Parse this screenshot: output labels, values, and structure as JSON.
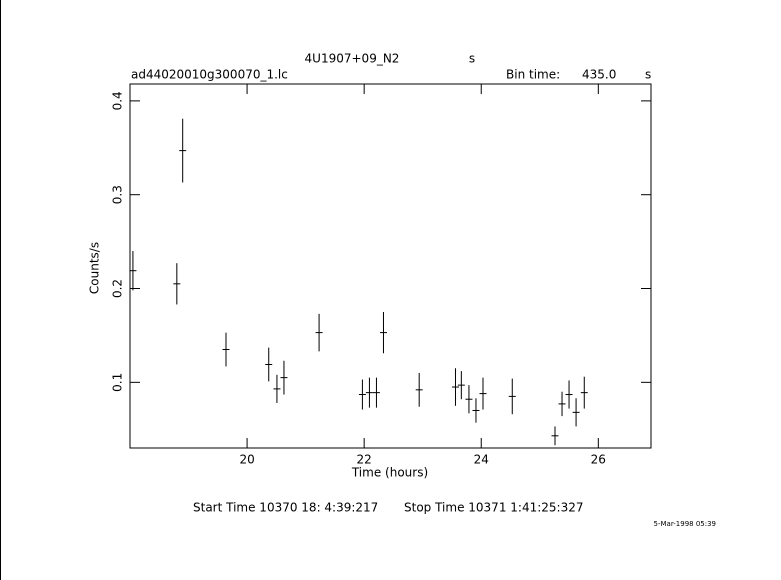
{
  "chart_data": {
    "type": "errorbar",
    "title": "4U1907+09_N2",
    "title_unit": "s",
    "file": "ad44020010g300070_1.lc",
    "bin_time_label": "Bin time:",
    "bin_time": "435.0",
    "bin_time_unit": "s",
    "xlabel": "Time (hours)",
    "ylabel": "Counts/s",
    "start_time": "Start Time 10370 18: 4:39:217",
    "stop_time": "Stop Time 10371  1:41:25:327",
    "date": "5-Mar-1998 05:39",
    "xlim": [
      18.0,
      26.9
    ],
    "ylim": [
      0.03,
      0.418
    ],
    "xticks": [
      20,
      22,
      24,
      26
    ],
    "yticks": [
      0.1,
      0.2,
      0.3,
      0.4
    ],
    "series": [
      {
        "color": "#000000",
        "x": [
          18.05,
          18.8,
          18.9,
          19.64,
          20.37,
          20.51,
          20.63,
          21.23,
          21.97,
          22.09,
          22.21,
          22.33,
          22.94,
          23.56,
          23.66,
          23.79,
          23.91,
          24.03,
          24.53,
          25.26,
          25.38,
          25.5,
          25.62,
          25.76
        ],
        "values": [
          0.219,
          0.205,
          0.347,
          0.135,
          0.119,
          0.093,
          0.105,
          0.153,
          0.087,
          0.089,
          0.089,
          0.153,
          0.092,
          0.095,
          0.097,
          0.082,
          0.07,
          0.088,
          0.085,
          0.043,
          0.077,
          0.087,
          0.068,
          0.089
        ],
        "errors": [
          0.021,
          0.022,
          0.034,
          0.018,
          0.018,
          0.015,
          0.018,
          0.02,
          0.016,
          0.016,
          0.016,
          0.022,
          0.018,
          0.02,
          0.015,
          0.015,
          0.013,
          0.017,
          0.019,
          0.01,
          0.013,
          0.015,
          0.015,
          0.017
        ]
      }
    ]
  }
}
